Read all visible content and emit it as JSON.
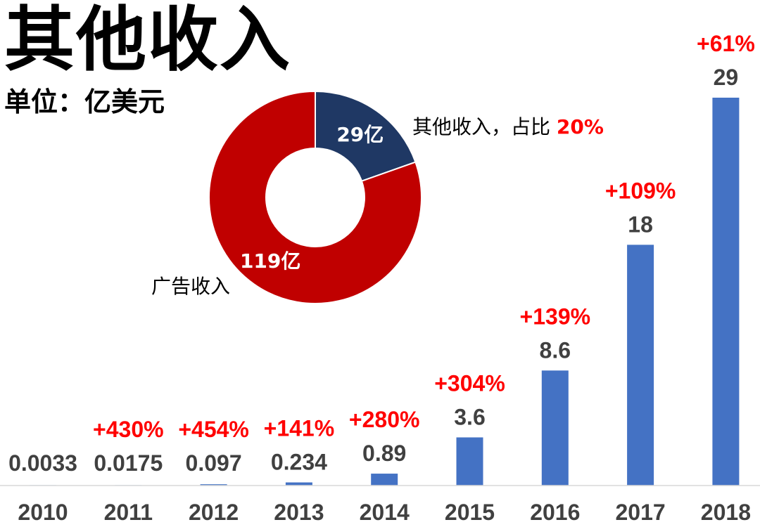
{
  "title": "其他收入",
  "subtitle": "单位：亿美元",
  "colors": {
    "bar": "#4472c4",
    "growth": "#ff0000",
    "value_label": "#404040",
    "donut_other": "#1f3864",
    "donut_ads": "#c00000"
  },
  "chart_data": [
    {
      "type": "bar",
      "title": "",
      "xlabel": "",
      "ylabel": "",
      "categories": [
        "2010",
        "2011",
        "2012",
        "2013",
        "2014",
        "2015",
        "2016",
        "2017",
        "2018"
      ],
      "values": [
        0.0033,
        0.0175,
        0.097,
        0.234,
        0.89,
        3.6,
        8.6,
        18,
        29
      ],
      "value_labels": [
        "0.0033",
        "0.0175",
        "0.097",
        "0.234",
        "0.89",
        "3.6",
        "8.6",
        "18",
        "29"
      ],
      "growth_labels": [
        "",
        "+430%",
        "+454%",
        "+141%",
        "+280%",
        "+304%",
        "+139%",
        "+109%",
        "+61%"
      ],
      "ylim": [
        0,
        29
      ],
      "grid": false,
      "legend": "none"
    },
    {
      "type": "pie",
      "style": "donut",
      "slices": [
        {
          "name": "其他收入",
          "value": 29,
          "label": "29亿"
        },
        {
          "name": "广告收入",
          "value": 119,
          "label": "119亿"
        }
      ],
      "annotation_other": "其他收入，占比 ",
      "annotation_other_pct": "20%",
      "annotation_ads": "广告收入"
    }
  ]
}
